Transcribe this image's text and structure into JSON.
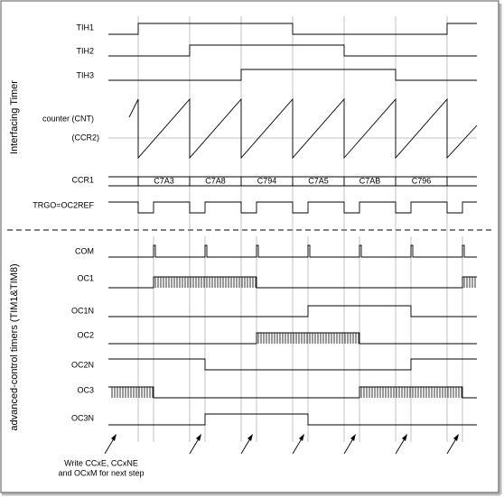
{
  "side_labels": [
    "Interfacing Timer",
    "advanced-control timers (TIM1&TIM8)"
  ],
  "signals": {
    "tih1": "TIH1",
    "tih2": "TIH2",
    "tih3": "TIH3",
    "counter": "counter (CNT)",
    "ccr2": "(CCR2)",
    "ccr1": "CCR1",
    "trgo": "TRGO=OC2REF",
    "com": "COM",
    "oc1": "OC1",
    "oc1n": "OC1N",
    "oc2": "OC2",
    "oc2n": "OC2N",
    "oc3": "OC3",
    "oc3n": "OC3N"
  },
  "ccr1_values": [
    "C7A3",
    "C7A8",
    "C794",
    "C7A5",
    "C7AB",
    "C796"
  ],
  "note": [
    "Write CCxE, CCxNE",
    "and OCxM for next step"
  ]
}
